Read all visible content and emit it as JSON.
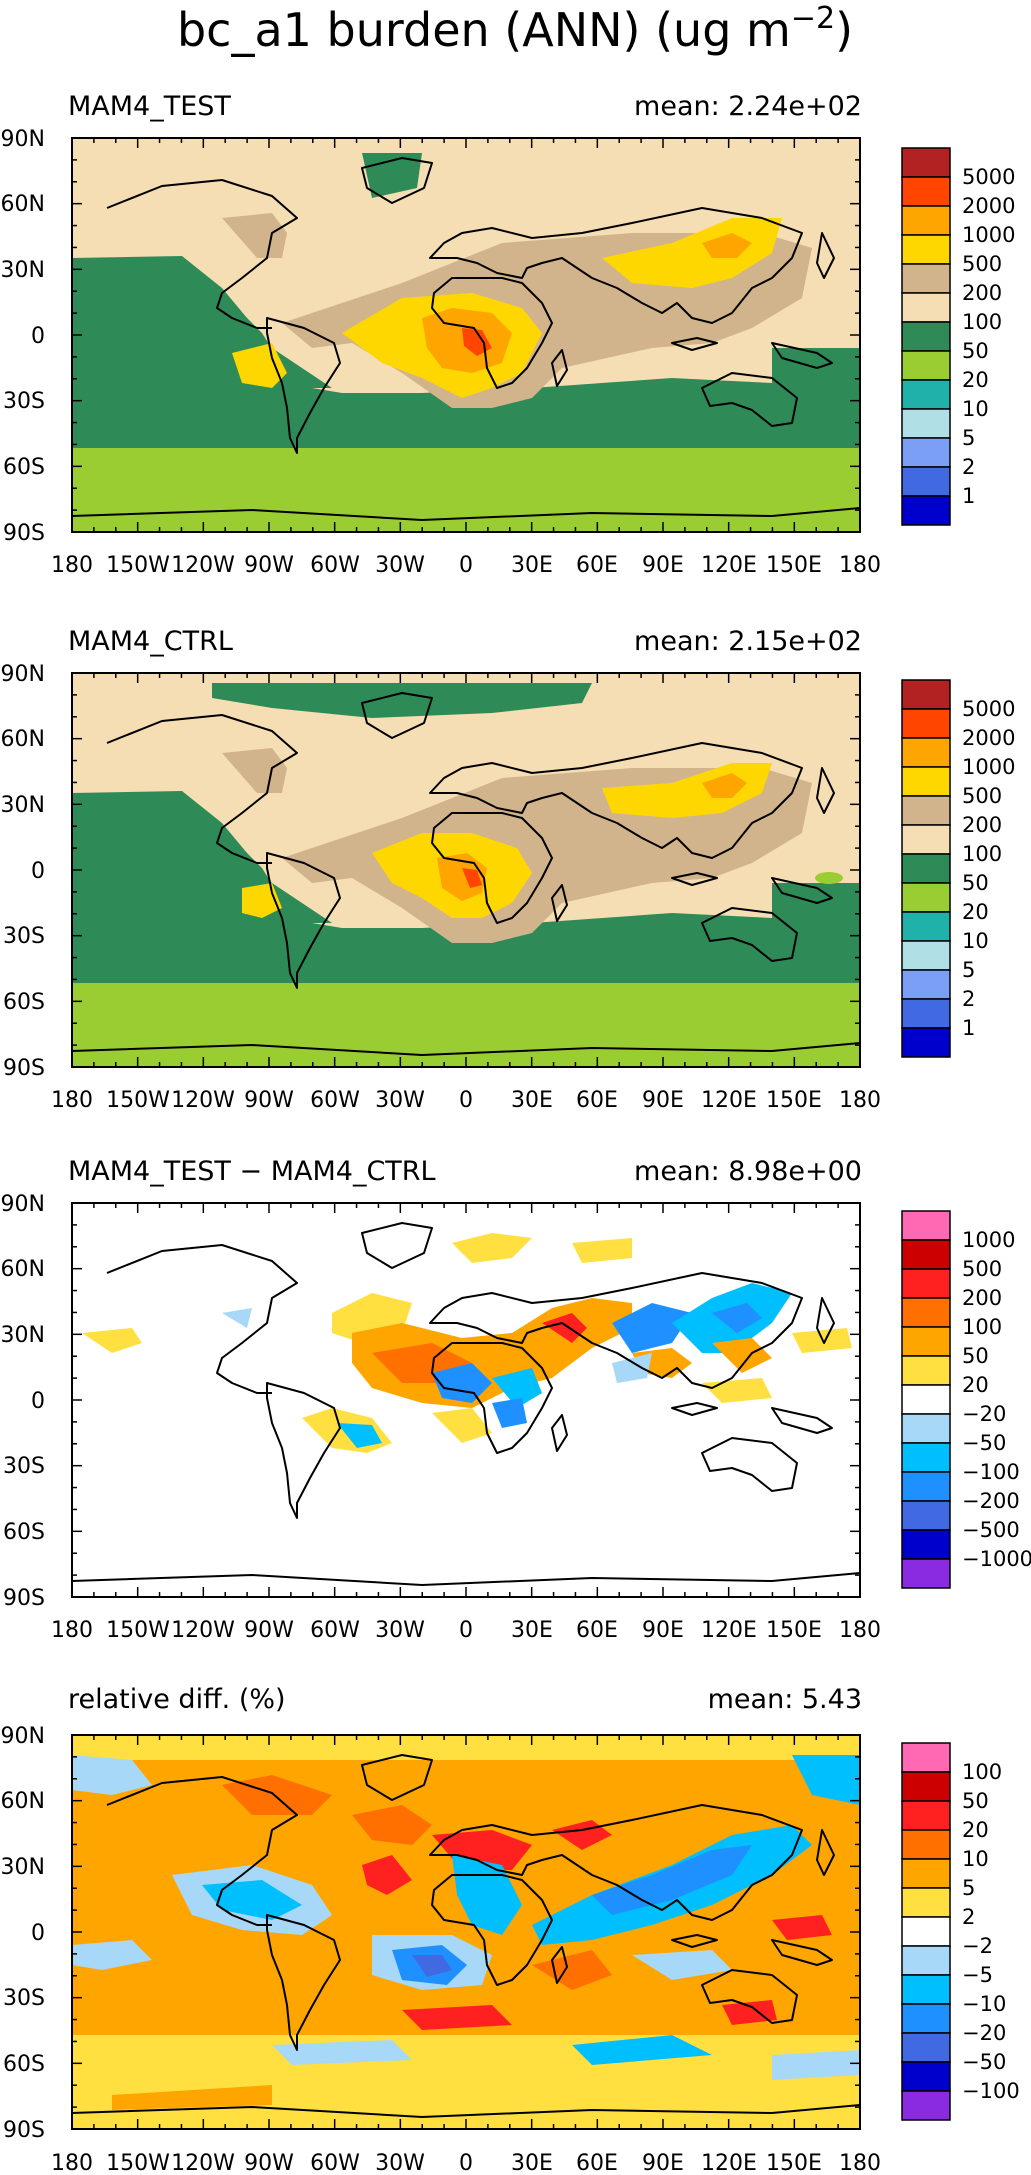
{
  "title": "bc_a1 burden (ANN) (ug m",
  "title_sup": "−2",
  "title_tail": ")",
  "lat_ticks": [
    "90N",
    "60N",
    "30N",
    "0",
    "30S",
    "60S",
    "90S"
  ],
  "lon_ticks": [
    "180",
    "150W",
    "120W",
    "90W",
    "60W",
    "30W",
    "0",
    "30E",
    "60E",
    "90E",
    "120E",
    "150E",
    "180"
  ],
  "panels": [
    {
      "name": "MAM4_TEST",
      "mean": "mean: 2.24e+02",
      "colorbar": {
        "colors": [
          "#b22222",
          "#ff4500",
          "#ffa500",
          "#ffd700",
          "#d2b48c",
          "#f5deb3",
          "#2e8b57",
          "#9acd32",
          "#20b2aa",
          "#b0e0e6",
          "#7b9ff5",
          "#4169e1",
          "#0000cd"
        ],
        "labels": [
          "5000",
          "2000",
          "1000",
          "500",
          "200",
          "100",
          "50",
          "20",
          "10",
          "5",
          "2",
          "1"
        ]
      }
    },
    {
      "name": "MAM4_CTRL",
      "mean": "mean: 2.15e+02",
      "colorbar": {
        "colors": [
          "#b22222",
          "#ff4500",
          "#ffa500",
          "#ffd700",
          "#d2b48c",
          "#f5deb3",
          "#2e8b57",
          "#9acd32",
          "#20b2aa",
          "#b0e0e6",
          "#7b9ff5",
          "#4169e1",
          "#0000cd"
        ],
        "labels": [
          "5000",
          "2000",
          "1000",
          "500",
          "200",
          "100",
          "50",
          "20",
          "10",
          "5",
          "2",
          "1"
        ]
      }
    },
    {
      "name": "MAM4_TEST − MAM4_CTRL",
      "mean": "mean: 8.98e+00",
      "colorbar": {
        "colors": [
          "#ff69b4",
          "#cc0000",
          "#ff2020",
          "#ff7000",
          "#ffa500",
          "#ffe040",
          "#ffffff",
          "#a8d8f8",
          "#00bfff",
          "#1e90ff",
          "#4169e1",
          "#0000cd",
          "#8a2be2"
        ],
        "labels": [
          "1000",
          "500",
          "200",
          "100",
          "50",
          "20",
          "−20",
          "−50",
          "−100",
          "−200",
          "−500",
          "−1000"
        ]
      }
    },
    {
      "name": "relative diff. (%)",
      "mean": "mean:   5.43",
      "colorbar": {
        "colors": [
          "#ff69b4",
          "#cc0000",
          "#ff2020",
          "#ff7000",
          "#ffa500",
          "#ffe040",
          "#ffffff",
          "#a8d8f8",
          "#00bfff",
          "#1e90ff",
          "#4169e1",
          "#0000cd",
          "#8a2be2"
        ],
        "labels": [
          "100",
          "50",
          "20",
          "10",
          "5",
          "2",
          "−2",
          "−5",
          "−10",
          "−20",
          "−50",
          "−100"
        ]
      }
    }
  ]
}
